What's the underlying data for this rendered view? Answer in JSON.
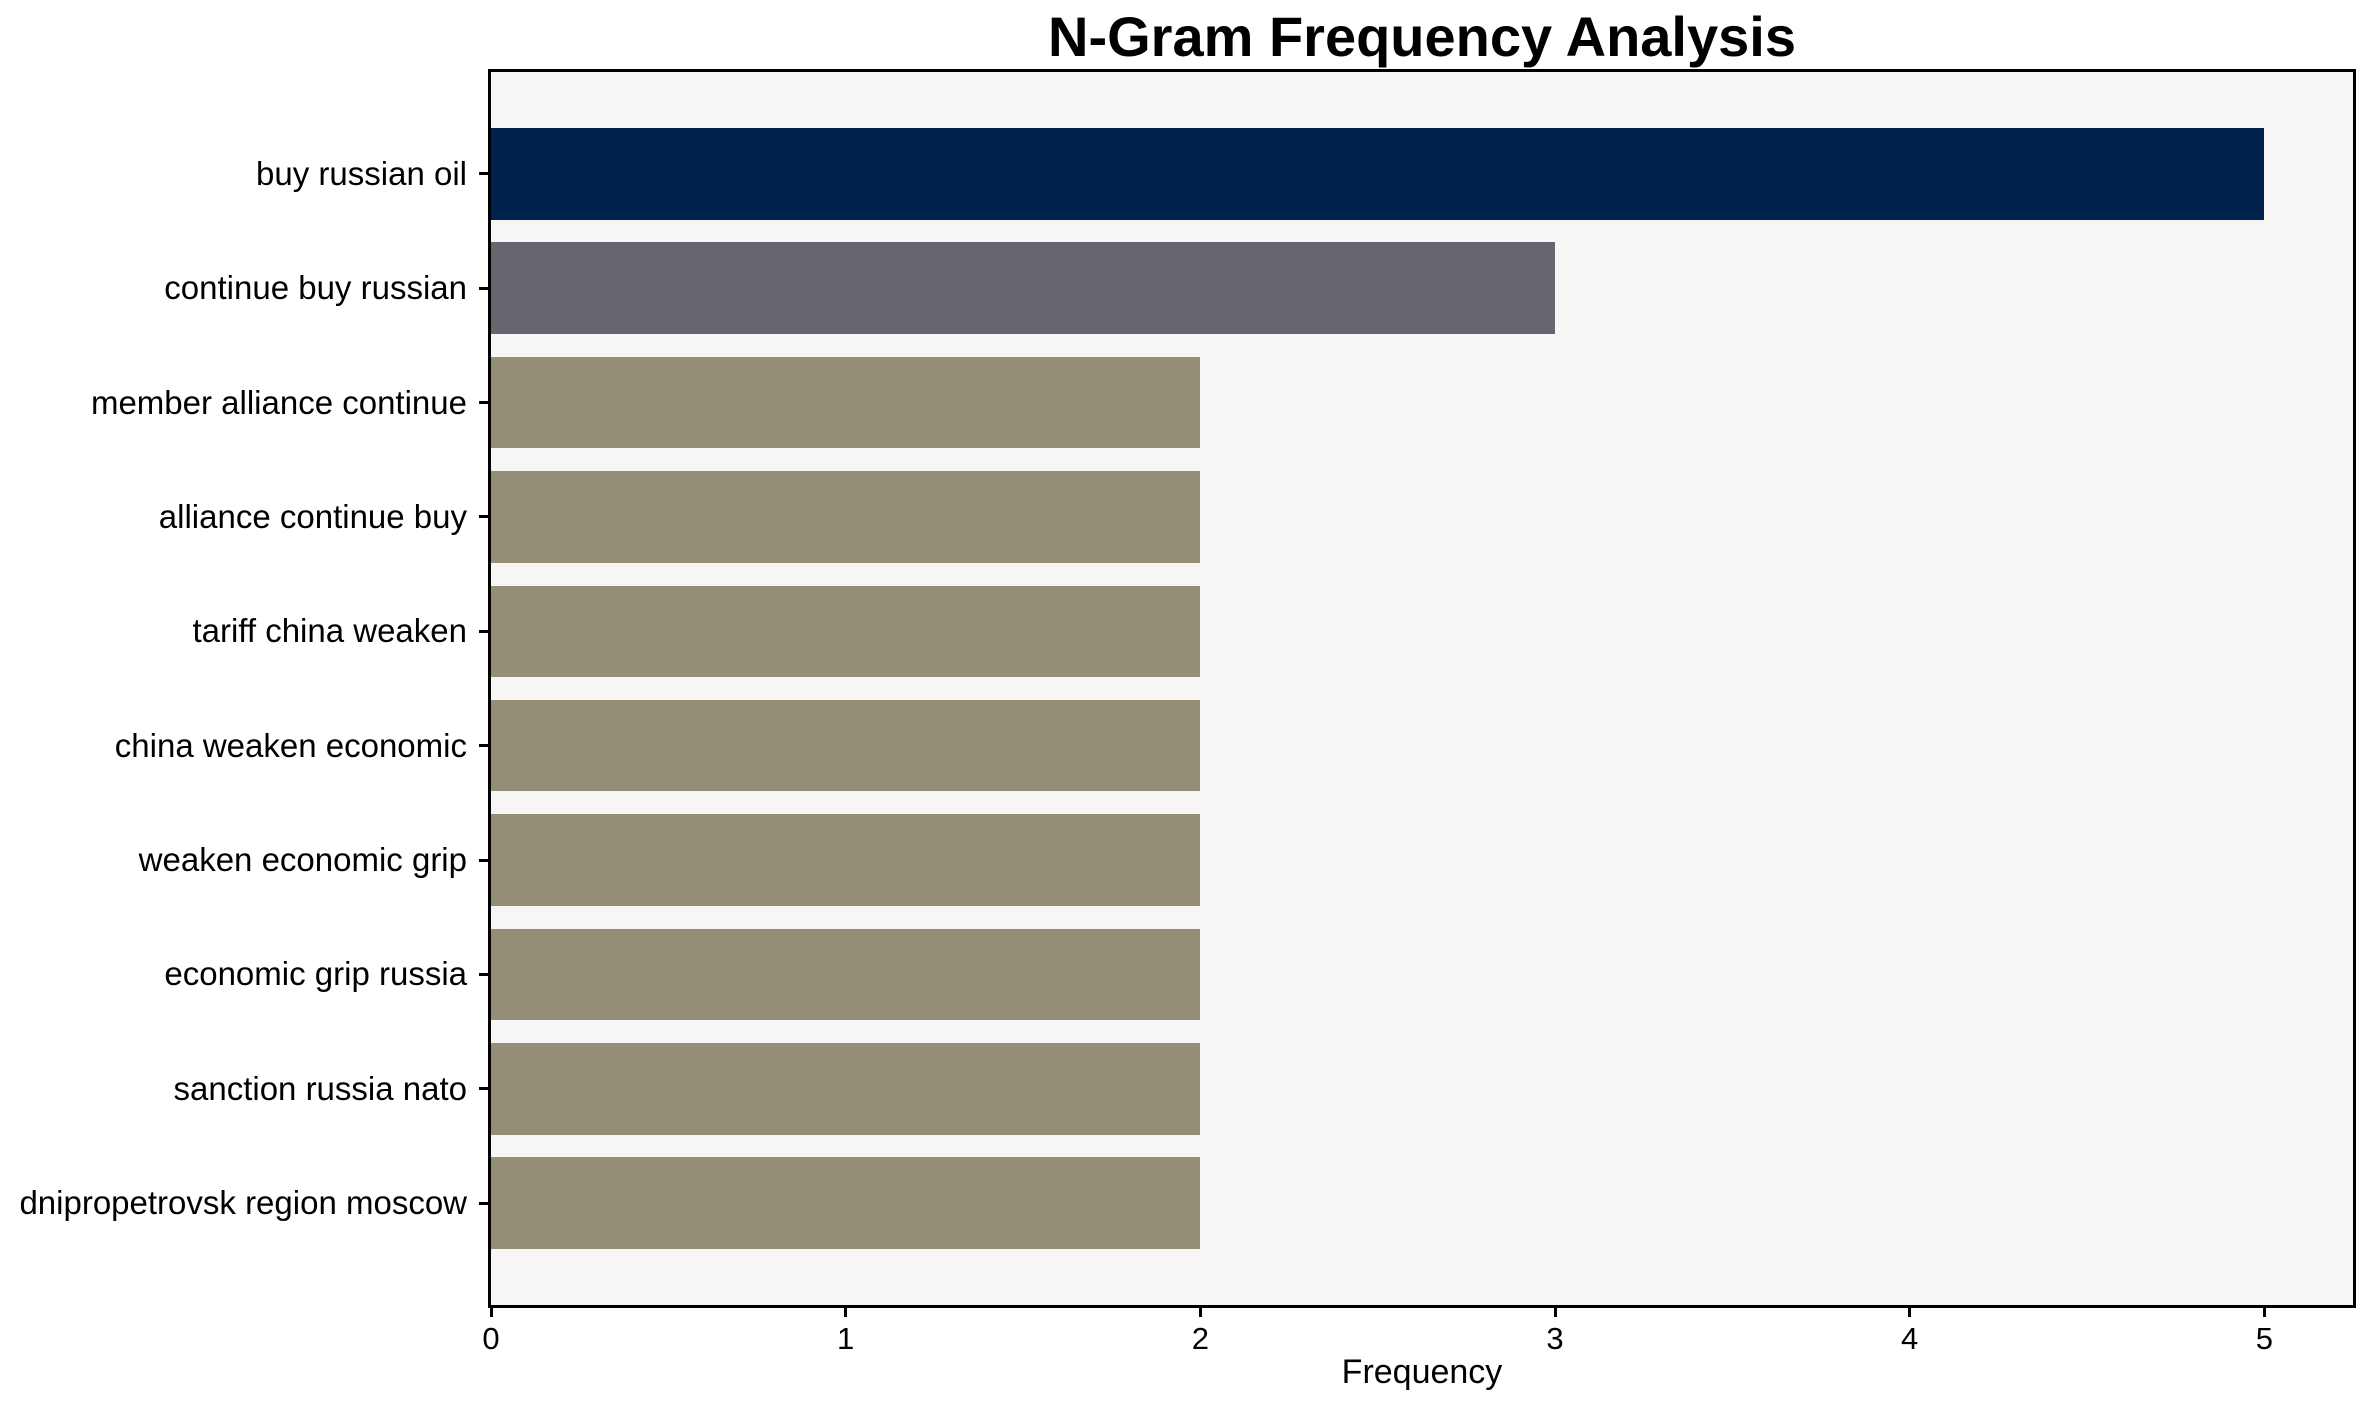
{
  "title": "N-Gram Frequency Analysis",
  "chart_data": {
    "type": "bar",
    "orientation": "horizontal",
    "title": "N-Gram Frequency Analysis",
    "xlabel": "Frequency",
    "ylabel": "",
    "categories": [
      "buy russian oil",
      "continue buy russian",
      "member alliance continue",
      "alliance continue buy",
      "tariff china weaken",
      "china weaken economic",
      "weaken economic grip",
      "economic grip russia",
      "sanction russia nato",
      "dnipropetrovsk region moscow"
    ],
    "values": [
      5,
      3,
      2,
      2,
      2,
      2,
      2,
      2,
      2,
      2
    ],
    "bar_colors": [
      "#01224d",
      "#66676e",
      "#948e76",
      "#948e76",
      "#948e76",
      "#948e76",
      "#948e76",
      "#948e76",
      "#948e76",
      "#948e76"
    ],
    "xlim": [
      0,
      5.25
    ],
    "xticks": [
      0,
      1,
      2,
      3,
      4,
      5
    ],
    "xtick_labels": [
      "0",
      "1",
      "2",
      "3",
      "4",
      "5"
    ],
    "grid": false,
    "legend_position": "none",
    "plot_background": "#f7f6f5",
    "figure_background": "#ffffff",
    "frame_color": "#000000",
    "text_color": "#000000"
  }
}
